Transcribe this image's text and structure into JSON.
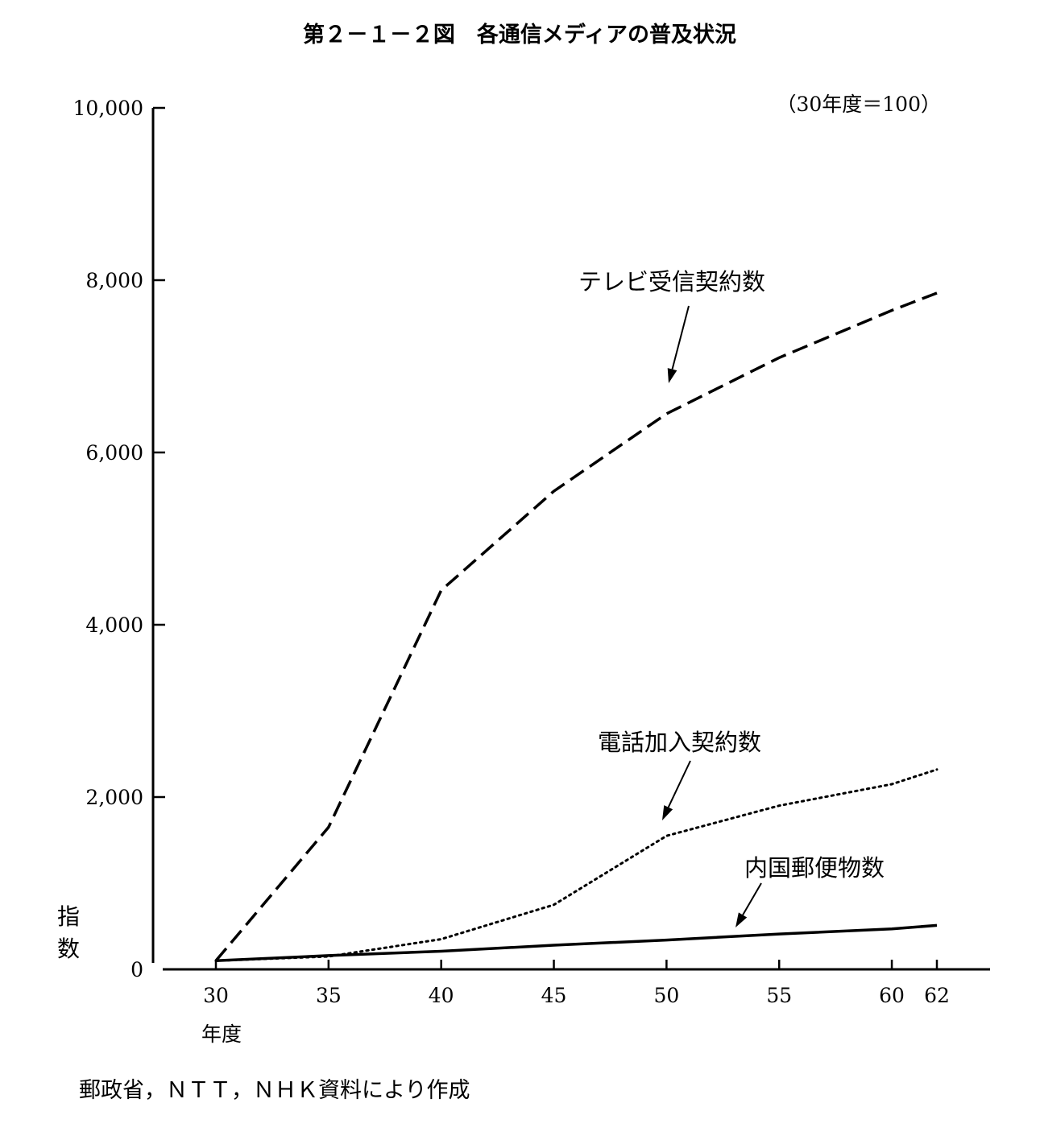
{
  "chart_data": {
    "type": "line",
    "title": "第２－１－２図　各通信メディアの普及状況",
    "note": "（30年度＝100）",
    "ylabel": "指数",
    "xlabel": "年度",
    "x": [
      30,
      35,
      40,
      45,
      50,
      55,
      60,
      62
    ],
    "xticks": [
      "30",
      "35",
      "40",
      "45",
      "50",
      "55",
      "60",
      "62"
    ],
    "yticks": [
      "0",
      "2,000",
      "4,000",
      "6,000",
      "8,000",
      "10,000"
    ],
    "ylim": [
      0,
      10000
    ],
    "series": [
      {
        "name": "テレビ受信契約数",
        "style": "dashed",
        "values": [
          100,
          1650,
          4400,
          5550,
          6450,
          7100,
          7650,
          7850
        ]
      },
      {
        "name": "電話加入契約数",
        "style": "dotted",
        "values": [
          100,
          150,
          350,
          750,
          1550,
          1900,
          2150,
          2320
        ]
      },
      {
        "name": "内国郵便物数",
        "style": "solid",
        "values": [
          100,
          160,
          210,
          280,
          340,
          410,
          470,
          510
        ]
      }
    ],
    "source": "郵政省，ＮＴＴ，ＮＨＫ資料により作成"
  }
}
